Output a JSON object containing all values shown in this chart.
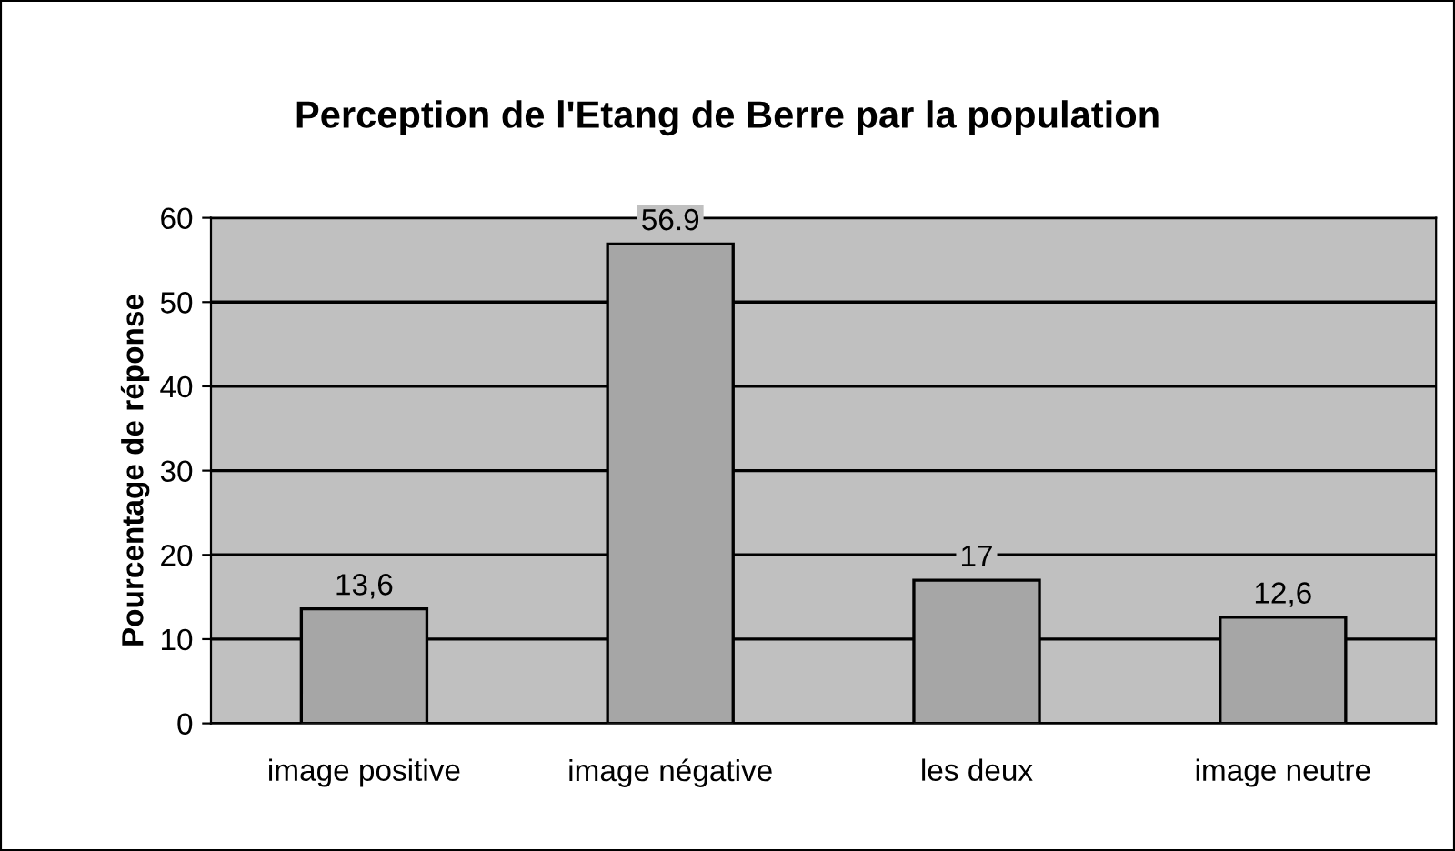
{
  "chart_data": {
    "type": "bar",
    "title": "Perception de l'Etang de Berre par la population",
    "ylabel": "Pourcentage de réponse",
    "categories": [
      "image positive",
      "image négative",
      "les deux",
      "image neutre"
    ],
    "values": [
      13.6,
      56.9,
      17,
      12.6
    ],
    "value_labels": [
      "13,6",
      "56.9",
      "17",
      "12,6"
    ],
    "color": "#a6a6a6",
    "ylim": [
      0,
      60
    ],
    "yticks": [
      0,
      10,
      20,
      30,
      40,
      50,
      60
    ],
    "grid": "y",
    "legend": false
  }
}
